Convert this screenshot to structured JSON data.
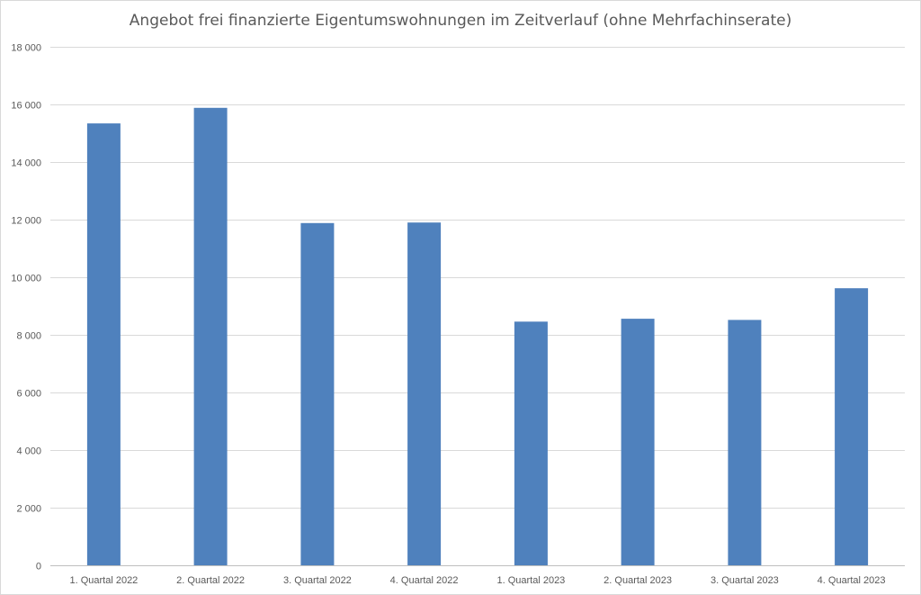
{
  "chart_data": {
    "type": "bar",
    "title": "Angebot frei finanzierte Eigentumswohnungen im Zeitverlauf (ohne Mehrfachinserate)",
    "xlabel": "",
    "ylabel": "",
    "categories": [
      "1. Quartal 2022",
      "2. Quartal 2022",
      "3. Quartal 2022",
      "4. Quartal 2022",
      "1. Quartal 2023",
      "2. Quartal 2023",
      "3. Quartal 2023",
      "4. Quartal 2023"
    ],
    "values": [
      15340,
      15880,
      11880,
      11900,
      8460,
      8560,
      8520,
      9620
    ],
    "ylim": [
      0,
      18000
    ],
    "yticks": [
      0,
      2000,
      4000,
      6000,
      8000,
      10000,
      12000,
      14000,
      16000,
      18000
    ],
    "ytick_labels": [
      "0",
      "2 000",
      "4 000",
      "6 000",
      "8 000",
      "10 000",
      "12 000",
      "14 000",
      "16 000",
      "18 000"
    ],
    "grid": true,
    "legend": "none",
    "colors": {
      "bar": "#4f81bd",
      "grid": "#d9d9d9",
      "axis": "#bfbfbf",
      "text": "#595959"
    }
  }
}
